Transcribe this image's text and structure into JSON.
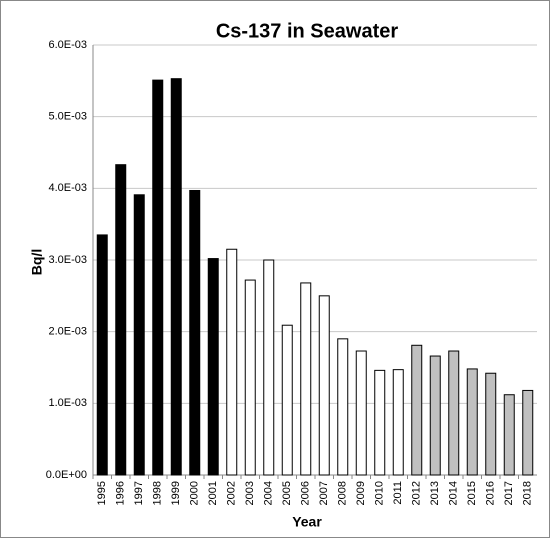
{
  "chart_data": {
    "type": "bar",
    "title": "Cs-137 in Seawater",
    "x_label": "Year",
    "y_label": "Bq/l",
    "categories": [
      "1995",
      "1996",
      "1997",
      "1998",
      "1999",
      "2000",
      "2001",
      "2002",
      "2003",
      "2004",
      "2005",
      "2006",
      "2007",
      "2008",
      "2009",
      "2010",
      "2011",
      "2012",
      "2013",
      "2014",
      "2015",
      "2016",
      "2017",
      "2018"
    ],
    "values": [
      0.00335,
      0.00433,
      0.00391,
      0.00551,
      0.00553,
      0.00397,
      0.00302,
      0.00315,
      0.00272,
      0.003,
      0.00209,
      0.00268,
      0.0025,
      0.0019,
      0.00173,
      0.00146,
      0.00147,
      0.00181,
      0.00166,
      0.00173,
      0.00148,
      0.00142,
      0.00112,
      0.00118
    ],
    "colors": [
      "#000000",
      "#000000",
      "#000000",
      "#000000",
      "#000000",
      "#000000",
      "#000000",
      "#ffffff",
      "#ffffff",
      "#ffffff",
      "#ffffff",
      "#ffffff",
      "#ffffff",
      "#ffffff",
      "#ffffff",
      "#ffffff",
      "#ffffff",
      "#c0c0c0",
      "#c0c0c0",
      "#c0c0c0",
      "#c0c0c0",
      "#c0c0c0",
      "#c0c0c0",
      "#c0c0c0"
    ],
    "ylim": [
      0,
      0.006
    ],
    "yticks": [
      {
        "value": 0,
        "label": "0.0E+00"
      },
      {
        "value": 0.001,
        "label": "1.0E-03"
      },
      {
        "value": 0.002,
        "label": "2.0E-03"
      },
      {
        "value": 0.003,
        "label": "3.0E-03"
      },
      {
        "value": 0.004,
        "label": "4.0E-03"
      },
      {
        "value": 0.005,
        "label": "5.0E-03"
      },
      {
        "value": 0.006,
        "label": "6.0E-03"
      }
    ],
    "grid": true
  }
}
